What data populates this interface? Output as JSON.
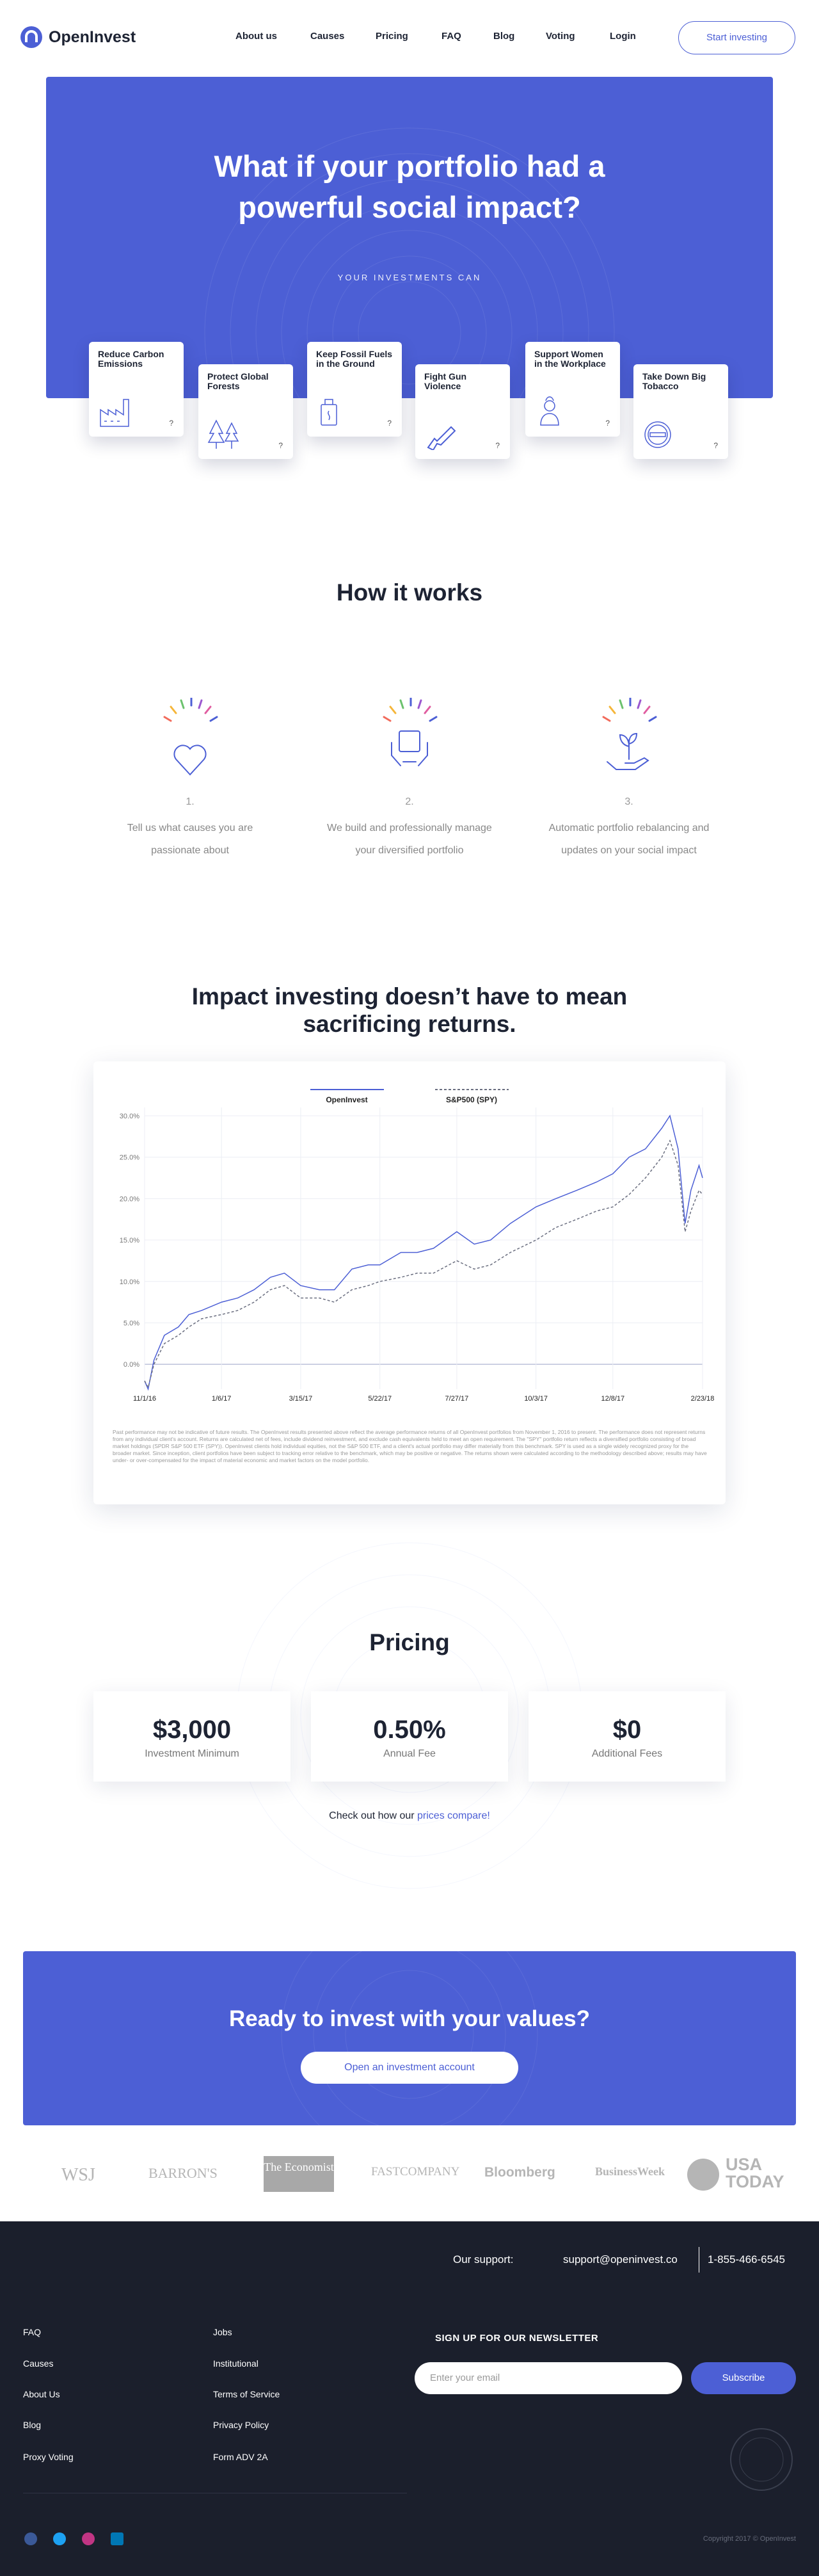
{
  "nav": {
    "logo": "OpenInvest",
    "links": [
      "About us",
      "Causes",
      "Pricing",
      "FAQ",
      "Blog",
      "Voting",
      "Login"
    ],
    "cta": "Start investing"
  },
  "hero": {
    "title_lines": [
      "What if your portfolio had a",
      "powerful social impact?"
    ],
    "subtitle": "YOUR INVESTMENTS CAN",
    "causes": [
      {
        "title": "Reduce Carbon Emissions",
        "help": "?"
      },
      {
        "title": "Protect Global Forests",
        "help": "?"
      },
      {
        "title": "Keep Fossil Fuels in the Ground",
        "help": "?"
      },
      {
        "title": "Fight Gun Violence",
        "help": "?"
      },
      {
        "title": "Support Women in the Workplace",
        "help": "?"
      },
      {
        "title": "Take Down Big Tobacco",
        "help": "?"
      }
    ]
  },
  "how": {
    "title": "How it works",
    "steps": [
      {
        "number": "1.",
        "text": "Tell us what causes you are passionate about"
      },
      {
        "number": "2.",
        "text": "We build and professionally manage your diversified portfolio"
      },
      {
        "number": "3.",
        "text": "Automatic portfolio rebalancing and updates on your social impact"
      }
    ]
  },
  "impact": {
    "title_lines": [
      "Impact investing doesn’t have to mean",
      "sacrificing returns."
    ],
    "disclaimer": "Past performance may not be indicative of future results. The OpenInvest results presented above reflect the average performance returns of all OpenInvest portfolios from November 1, 2016 to present. The performance does not represent returns from any individual client's account. Returns are calculated net of fees, include dividend reinvestment, and exclude cash equivalents held to meet an open requirement. The \"SPY\" portfolio return reflects a diversified portfolio consisting of broad market holdings (SPDR S&P 500 ETF (SPY)). OpenInvest clients hold individual equities, not the S&P 500 ETF, and a client's actual portfolio may differ materially from this benchmark. SPY is used as a single widely recognized proxy for the broader market. Since inception, client portfolios have been subject to tracking error relative to the benchmark, which may be positive or negative. The returns shown were calculated according to the methodology described above; results may have under- or over-compensated for the impact of material economic and market factors on the model portfolio."
  },
  "chart_data": {
    "type": "line",
    "grid": true,
    "x": [
      "11/1/16",
      "11/4/16",
      "11/9/16",
      "11/18/16",
      "11/30/16",
      "12/9/16",
      "12/20/16",
      "1/6/17",
      "1/20/17",
      "2/3/17",
      "2/17/17",
      "3/1/17",
      "3/15/17",
      "3/31/17",
      "4/13/17",
      "4/28/17",
      "5/12/17",
      "5/22/17",
      "6/9/17",
      "6/23/17",
      "7/7/17",
      "7/27/17",
      "8/11/17",
      "8/25/17",
      "9/11/17",
      "10/3/17",
      "10/20/17",
      "11/7/17",
      "11/24/17",
      "12/8/17",
      "12/22/17",
      "1/5/18",
      "1/19/18",
      "1/26/18",
      "2/2/18",
      "2/8/18",
      "2/13/18",
      "2/20/18",
      "2/23/18"
    ],
    "series": [
      {
        "name": "OpenInvest",
        "color": "#4c5fd5",
        "dashed": false,
        "values": [
          -2.0,
          -3.0,
          0.5,
          3.5,
          4.5,
          6.0,
          6.5,
          7.5,
          8.0,
          9.0,
          10.5,
          11.0,
          9.5,
          9.0,
          9.0,
          11.5,
          12.0,
          12.0,
          13.5,
          13.5,
          14.0,
          16.0,
          14.5,
          15.0,
          17.0,
          19.0,
          20.0,
          21.0,
          22.0,
          23.0,
          25.0,
          26.0,
          28.5,
          30.0,
          26.0,
          17.0,
          21.0,
          24.0,
          22.5
        ]
      },
      {
        "name": "S&P500 (SPY)",
        "color": "#6b6f80",
        "dashed": true,
        "values": [
          -2.0,
          -2.8,
          0.0,
          2.5,
          3.5,
          4.5,
          5.5,
          6.0,
          6.5,
          7.5,
          9.0,
          9.5,
          8.0,
          8.0,
          7.5,
          9.0,
          9.5,
          10.0,
          10.5,
          11.0,
          11.0,
          12.5,
          11.5,
          12.0,
          13.5,
          15.0,
          16.5,
          17.5,
          18.5,
          19.0,
          20.5,
          22.5,
          25.0,
          27.0,
          24.0,
          16.0,
          18.5,
          21.0,
          20.5
        ]
      }
    ],
    "xlim": [
      "11/1/16",
      "2/23/18"
    ],
    "xticks": [
      "11/1/16",
      "1/6/17",
      "3/15/17",
      "5/22/17",
      "7/27/17",
      "10/3/17",
      "12/8/17",
      "2/23/18"
    ],
    "ylim": [
      -3,
      31
    ],
    "yticks": [
      {
        "value": 0,
        "label": "0.0%"
      },
      {
        "value": 5,
        "label": "5.0%"
      },
      {
        "value": 10,
        "label": "10.0%"
      },
      {
        "value": 15,
        "label": "15.0%"
      },
      {
        "value": 20,
        "label": "20.0%"
      },
      {
        "value": 25,
        "label": "25.0%"
      },
      {
        "value": 30,
        "label": "30.0%"
      }
    ]
  },
  "pricing": {
    "title": "Pricing",
    "items": [
      {
        "value": "$3,000",
        "label": "Investment Minimum"
      },
      {
        "value": "0.50%",
        "label": "Annual Fee"
      },
      {
        "value": "$0",
        "label": "Additional Fees"
      }
    ],
    "compare_prefix": "Check out how our",
    "compare_link": "prices compare!"
  },
  "cta": {
    "title": "Ready to invest with your values?",
    "button": "Open an investment account"
  },
  "press": [
    "WSJ",
    "BARRON'S",
    "The Economist",
    "FASTCOMPANY",
    "Bloomberg",
    "BusinessWeek",
    "USA TODAY"
  ],
  "footer": {
    "support_label": "Our support:",
    "email": "support@openinvest.co",
    "phone": "1-855-466-6545",
    "links_col1": [
      "FAQ",
      "Causes",
      "About Us",
      "Blog",
      "Proxy Voting"
    ],
    "links_col2": [
      "Jobs",
      "Institutional",
      "Terms of Service",
      "Privacy Policy",
      "Form ADV 2A"
    ],
    "newsletter_title": "SIGN UP FOR OUR NEWSLETTER",
    "email_placeholder": "Enter your email",
    "subscribe": "Subscribe",
    "copyright": "Copyright 2017 © OpenInvest"
  }
}
